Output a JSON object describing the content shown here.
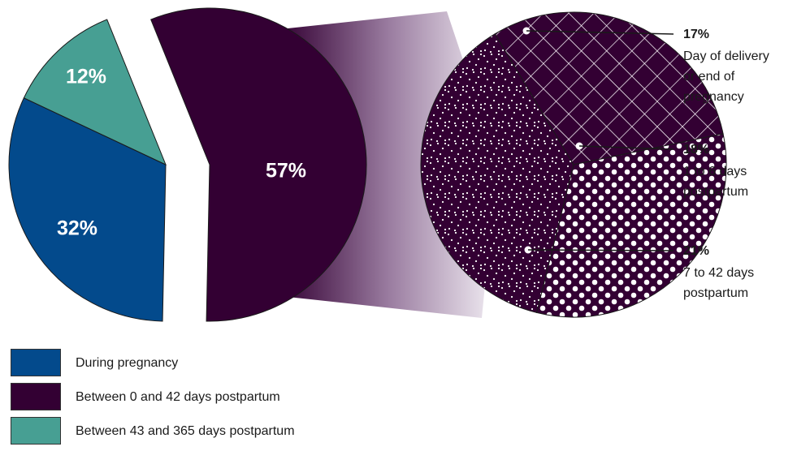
{
  "colors": {
    "during_pregnancy": "#034a8c",
    "postpartum_0_42": "#330033",
    "postpartum_43_365": "#479f93",
    "connector_light": "#f2eef4"
  },
  "chart_data": [
    {
      "type": "pie",
      "slices": [
        {
          "key": "during_pregnancy",
          "value": 32,
          "label": "32%"
        },
        {
          "key": "postpartum_0_42",
          "value": 57,
          "label": "57%"
        },
        {
          "key": "postpartum_43_365",
          "value": 12,
          "label": "12%"
        }
      ],
      "legend_position": "bottom-left"
    },
    {
      "type": "pie",
      "detail_of": "postpartum_0_42",
      "slices": [
        {
          "key": "day_of_delivery",
          "value": 17,
          "label": "17%",
          "pattern": "crosshatch",
          "desc": [
            "Day of delivery",
            "or end of",
            "pregnancy"
          ]
        },
        {
          "key": "days_1_6",
          "value": 18,
          "label": "18%",
          "pattern": "large-dots",
          "desc": [
            "1 to 6 days",
            "postpartum"
          ]
        },
        {
          "key": "days_7_42",
          "value": 21,
          "label": "21%",
          "pattern": "fine-dots",
          "desc": [
            "7 to 42 days",
            "postpartum"
          ]
        }
      ]
    }
  ],
  "legend": [
    {
      "key": "during_pregnancy",
      "label": "During pregnancy"
    },
    {
      "key": "postpartum_0_42",
      "label": "Between 0 and 42 days postpartum"
    },
    {
      "key": "postpartum_43_365",
      "label": "Between 43 and 365 days postpartum"
    }
  ]
}
